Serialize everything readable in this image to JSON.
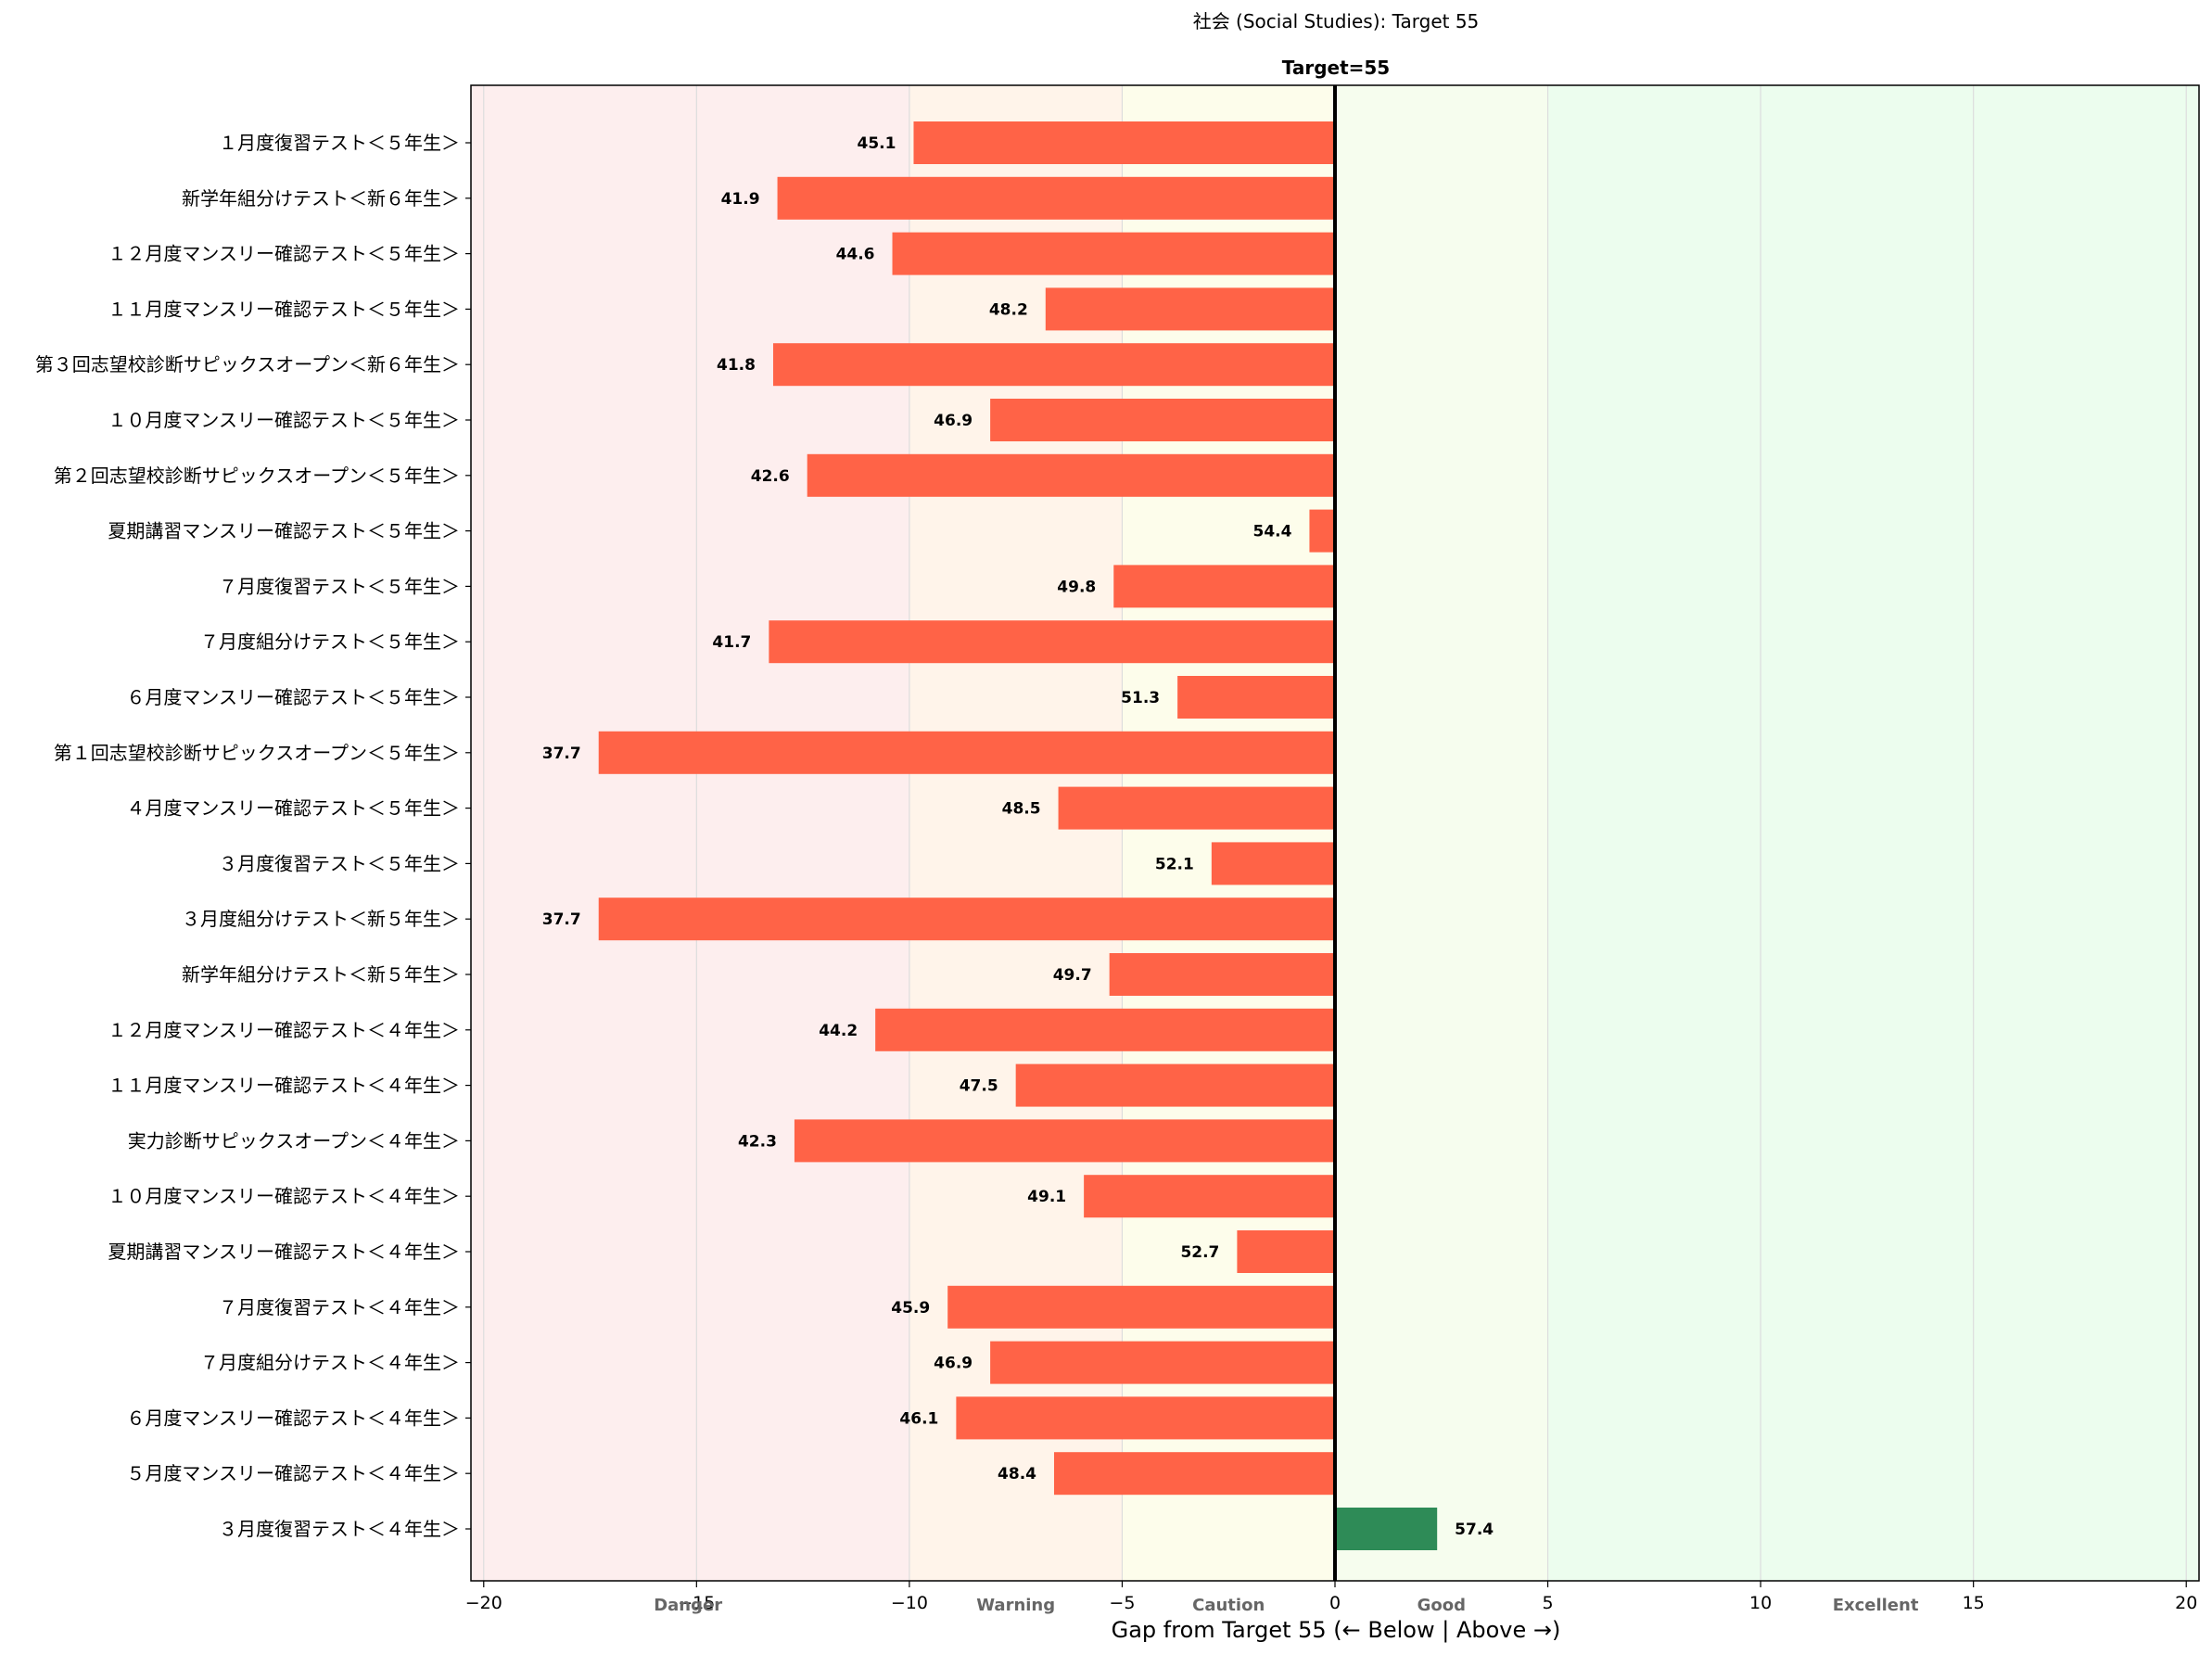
{
  "chart_data": {
    "type": "bar",
    "orientation": "horizontal",
    "title": "社会 (Social Studies): Target 55",
    "target_label": "Target=55",
    "target": 55,
    "xlabel": "Gap from Target 55  (← Below | Above →)",
    "xlim": [
      -20.3,
      20.3
    ],
    "xticks": [
      -20,
      -15,
      -10,
      -5,
      0,
      5,
      10,
      15,
      20
    ],
    "xtick_labels": [
      "−20",
      "−15",
      "−10",
      "−5",
      "0",
      "5",
      "10",
      "15",
      "20"
    ],
    "zones": [
      {
        "label": "Danger",
        "from": -20.3,
        "to": -10,
        "color": "#fdeeee",
        "label_at": -15.2
      },
      {
        "label": "Warning",
        "from": -10,
        "to": -5,
        "color": "#fff4ea",
        "label_at": -7.5
      },
      {
        "label": "Caution",
        "from": -5,
        "to": 0,
        "color": "#fdfdeb",
        "label_at": -2.5
      },
      {
        "label": "Good",
        "from": 0,
        "to": 5,
        "color": "#f6fdee",
        "label_at": 2.5
      },
      {
        "label": "Excellent",
        "from": 5,
        "to": 20.3,
        "color": "#ecfdee",
        "label_at": 12.7
      }
    ],
    "colors": {
      "below": "#ff6347",
      "above": "#2e8b57",
      "target_line": "#000000",
      "grid": "#dddddd"
    },
    "categories": [
      "１月度復習テスト＜５年生＞",
      "新学年組分けテスト＜新６年生＞",
      "１２月度マンスリー確認テスト＜５年生＞",
      "１１月度マンスリー確認テスト＜５年生＞",
      "第３回志望校診断サピックスオープン＜新６年生＞",
      "１０月度マンスリー確認テスト＜５年生＞",
      "第２回志望校診断サピックスオープン＜５年生＞",
      "夏期講習マンスリー確認テスト＜５年生＞",
      "７月度復習テスト＜５年生＞",
      "７月度組分けテスト＜５年生＞",
      "６月度マンスリー確認テスト＜５年生＞",
      "第１回志望校診断サピックスオープン＜５年生＞",
      "４月度マンスリー確認テスト＜５年生＞",
      "３月度復習テスト＜５年生＞",
      "３月度組分けテスト＜新５年生＞",
      "新学年組分けテスト＜新５年生＞",
      "１２月度マンスリー確認テスト＜４年生＞",
      "１１月度マンスリー確認テスト＜４年生＞",
      "実力診断サピックスオープン＜４年生＞",
      "１０月度マンスリー確認テスト＜４年生＞",
      "夏期講習マンスリー確認テスト＜４年生＞",
      "７月度復習テスト＜４年生＞",
      "７月度組分けテスト＜４年生＞",
      "６月度マンスリー確認テスト＜４年生＞",
      "５月度マンスリー確認テスト＜４年生＞",
      "３月度復習テスト＜４年生＞"
    ],
    "values": [
      45.1,
      41.9,
      44.6,
      48.2,
      41.8,
      46.9,
      42.6,
      54.4,
      49.8,
      41.7,
      51.3,
      37.7,
      48.5,
      52.1,
      37.7,
      49.7,
      44.2,
      47.5,
      42.3,
      49.1,
      52.7,
      45.9,
      46.9,
      46.1,
      48.4,
      57.4
    ],
    "value_labels": [
      "45.1",
      "41.9",
      "44.6",
      "48.2",
      "41.8",
      "46.9",
      "42.6",
      "54.4",
      "49.8",
      "41.7",
      "51.3",
      "37.7",
      "48.5",
      "52.1",
      "37.7",
      "49.7",
      "44.2",
      "47.5",
      "42.3",
      "49.1",
      "52.7",
      "45.9",
      "46.9",
      "46.1",
      "48.4",
      "57.4"
    ]
  }
}
